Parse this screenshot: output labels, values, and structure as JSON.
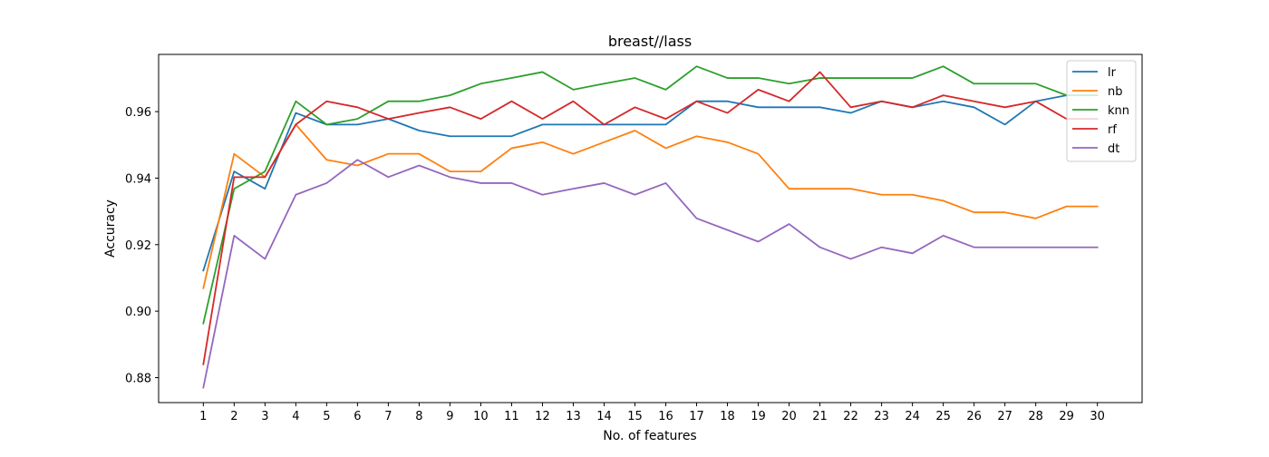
{
  "chart_data": {
    "type": "line",
    "title": "breast//lass",
    "xlabel": "No. of features",
    "ylabel": "Accuracy",
    "x": [
      1,
      2,
      3,
      4,
      5,
      6,
      7,
      8,
      9,
      10,
      11,
      12,
      13,
      14,
      15,
      16,
      17,
      18,
      19,
      20,
      21,
      22,
      23,
      24,
      25,
      26,
      27,
      28,
      29,
      30
    ],
    "xlim": [
      -0.45,
      31.45
    ],
    "ylim": [
      0.8725,
      0.9772
    ],
    "yticks": [
      0.88,
      0.9,
      0.92,
      0.94,
      0.96
    ],
    "ytick_labels": [
      "0.88",
      "0.90",
      "0.92",
      "0.94",
      "0.96"
    ],
    "grid": false,
    "legend_position": "top-right",
    "series": [
      {
        "name": "lr",
        "color": "#1f77b4",
        "values": [
          0.9122,
          0.942,
          0.9368,
          0.9596,
          0.9561,
          0.9561,
          0.9578,
          0.9543,
          0.9526,
          0.9526,
          0.9526,
          0.9561,
          0.9561,
          0.9561,
          0.9561,
          0.9561,
          0.9631,
          0.9631,
          0.9613,
          0.9613,
          0.9613,
          0.9596,
          0.9631,
          0.9613,
          0.9631,
          0.9613,
          0.9561,
          0.9631,
          0.9649,
          0.9649
        ]
      },
      {
        "name": "nb",
        "color": "#ff7f0e",
        "values": [
          0.9069,
          0.9473,
          0.9403,
          0.9561,
          0.9455,
          0.9438,
          0.9473,
          0.9473,
          0.942,
          0.942,
          0.949,
          0.9508,
          0.9473,
          0.9508,
          0.9543,
          0.949,
          0.9526,
          0.9508,
          0.9473,
          0.9368,
          0.9368,
          0.9368,
          0.935,
          0.935,
          0.9332,
          0.9297,
          0.9297,
          0.9279,
          0.9315,
          0.9315
        ]
      },
      {
        "name": "knn",
        "color": "#2ca02c",
        "values": [
          0.8963,
          0.9368,
          0.942,
          0.9631,
          0.9561,
          0.9578,
          0.9631,
          0.9631,
          0.9649,
          0.9684,
          0.9701,
          0.9719,
          0.9666,
          0.9684,
          0.9701,
          0.9666,
          0.9736,
          0.9701,
          0.9701,
          0.9684,
          0.9701,
          0.9701,
          0.9701,
          0.9701,
          0.9736,
          0.9684,
          0.9684,
          0.9684,
          0.9649,
          0.9649
        ]
      },
      {
        "name": "rf",
        "color": "#d62728",
        "values": [
          0.884,
          0.9403,
          0.9403,
          0.9561,
          0.9631,
          0.9613,
          0.9578,
          0.9596,
          0.9613,
          0.9578,
          0.9631,
          0.9578,
          0.9631,
          0.9561,
          0.9613,
          0.9578,
          0.9631,
          0.9596,
          0.9666,
          0.9631,
          0.9719,
          0.9613,
          0.9631,
          0.9613,
          0.9649,
          0.9631,
          0.9613,
          0.9631,
          0.9578,
          0.9578
        ]
      },
      {
        "name": "dt",
        "color": "#9467bd",
        "values": [
          0.877,
          0.9227,
          0.9157,
          0.935,
          0.9385,
          0.9455,
          0.9403,
          0.9438,
          0.9403,
          0.9385,
          0.9385,
          0.935,
          0.9368,
          0.9385,
          0.935,
          0.9385,
          0.9279,
          0.9244,
          0.9209,
          0.9262,
          0.9192,
          0.9157,
          0.9192,
          0.9174,
          0.9227,
          0.9192,
          0.9192,
          0.9192,
          0.9192,
          0.9192
        ]
      }
    ]
  }
}
